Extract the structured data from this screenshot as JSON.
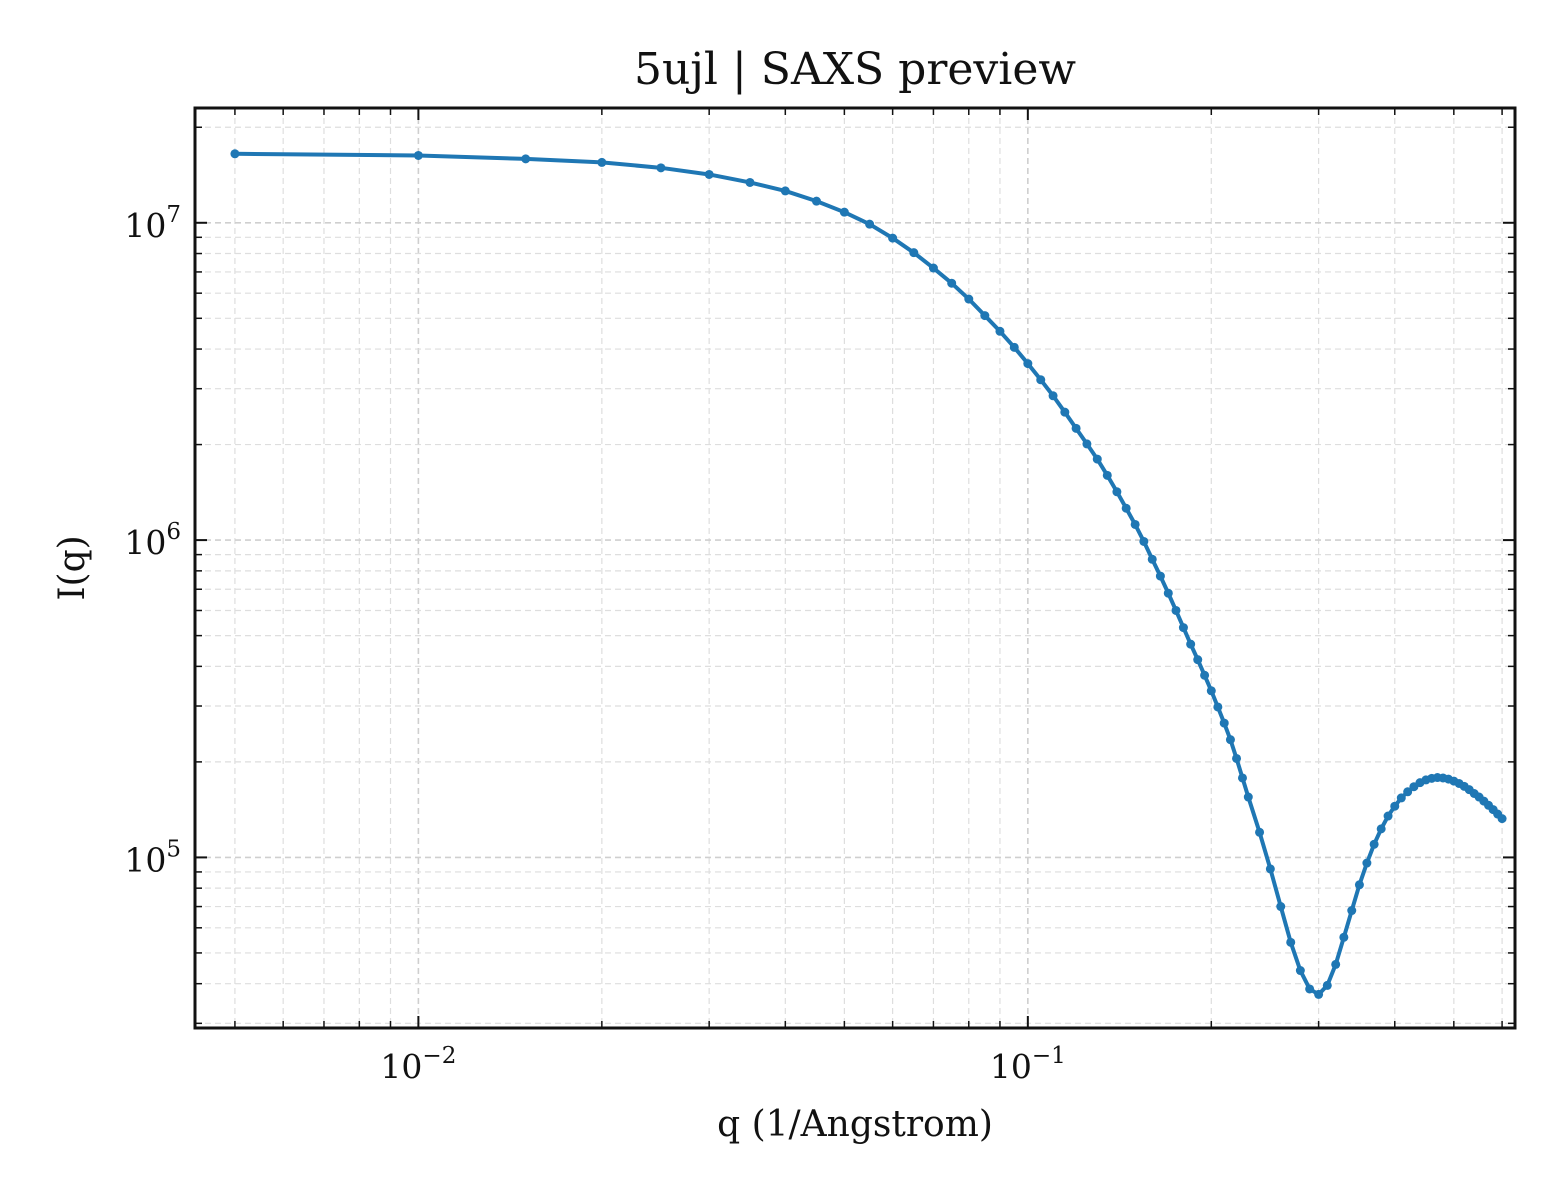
{
  "chart_data": {
    "type": "line",
    "title": "5ujl | SAXS preview",
    "xlabel": "q (1/Angstrom)",
    "ylabel": "I(q)",
    "x_scale": "log",
    "y_scale": "log",
    "xlim": [
      0.0043,
      0.63
    ],
    "ylim": [
      29000,
      23000000
    ],
    "grid": true,
    "marker": "circle",
    "color": "#1f77b4",
    "x_ticks": [
      {
        "value": 0.01,
        "base": "10",
        "exp": "−2"
      },
      {
        "value": 0.1,
        "base": "10",
        "exp": "−1"
      }
    ],
    "y_ticks": [
      {
        "value": 100000,
        "base": "10",
        "exp": "5"
      },
      {
        "value": 1000000,
        "base": "10",
        "exp": "6"
      },
      {
        "value": 10000000,
        "base": "10",
        "exp": "7"
      }
    ],
    "series": [
      {
        "x": [
          0.005,
          0.01,
          0.015,
          0.02,
          0.025,
          0.03,
          0.035,
          0.04,
          0.045,
          0.05,
          0.055,
          0.06,
          0.065,
          0.07,
          0.075,
          0.08,
          0.085,
          0.09,
          0.095,
          0.1,
          0.105,
          0.11,
          0.115,
          0.12,
          0.125,
          0.13,
          0.135,
          0.14,
          0.145,
          0.15,
          0.155,
          0.16,
          0.165,
          0.17,
          0.175,
          0.18,
          0.185,
          0.19,
          0.195,
          0.2,
          0.205,
          0.21,
          0.215,
          0.22,
          0.225,
          0.23,
          0.24,
          0.25,
          0.26,
          0.27,
          0.28,
          0.29,
          0.3,
          0.31,
          0.32,
          0.33,
          0.34,
          0.35,
          0.36,
          0.37,
          0.38,
          0.39,
          0.4,
          0.41,
          0.42,
          0.43,
          0.44,
          0.45,
          0.46,
          0.47,
          0.48,
          0.49,
          0.5,
          0.51,
          0.52,
          0.53,
          0.54,
          0.55,
          0.56,
          0.57,
          0.58,
          0.59,
          0.6
        ],
        "y": [
          16500000,
          16300000,
          15900000,
          15500000,
          14900000,
          14200000,
          13400000,
          12600000,
          11700000,
          10800000,
          9900000,
          8950000,
          8050000,
          7200000,
          6450000,
          5750000,
          5100000,
          4550000,
          4050000,
          3600000,
          3200000,
          2850000,
          2530000,
          2250000,
          2010000,
          1800000,
          1600000,
          1420000,
          1260000,
          1120000,
          990000,
          870000,
          770000,
          680000,
          600000,
          530000,
          470000,
          420000,
          375000,
          335000,
          298000,
          265000,
          235000,
          205000,
          178000,
          155000,
          120000,
          92000,
          70000,
          54000,
          44000,
          38500,
          37000,
          39500,
          46000,
          56000,
          68000,
          82000,
          96000,
          110000,
          123000,
          135000,
          145000,
          154000,
          161000,
          167000,
          172000,
          175500,
          177500,
          178500,
          178000,
          176500,
          174000,
          171000,
          167500,
          163500,
          159000,
          155000,
          150500,
          146000,
          141500,
          137000,
          132500
        ]
      }
    ]
  }
}
